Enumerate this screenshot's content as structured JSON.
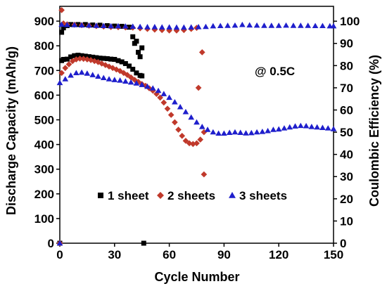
{
  "chart_data": {
    "type": "scatter",
    "xlabel": "Cycle Number",
    "ylabel_left": "Discharge Capacity (mAh/g)",
    "ylabel_right": "Coulombic Efficiency (%)",
    "annotation": "@ 0.5C",
    "xlim": [
      0,
      150
    ],
    "ylim_left": [
      0,
      960
    ],
    "ylim_right": [
      0,
      106.7
    ],
    "x_ticks": [
      "0",
      "30",
      "60",
      "90",
      "120",
      "150"
    ],
    "y_left_ticks": [
      "0",
      "100",
      "200",
      "300",
      "400",
      "500",
      "600",
      "700",
      "800",
      "900"
    ],
    "y_right_ticks": [
      "0",
      "10",
      "20",
      "30",
      "40",
      "50",
      "60",
      "70",
      "80",
      "90",
      "100"
    ],
    "legend_position": "bottom-center",
    "series": [
      {
        "name": "1 sheet",
        "color": "#000000",
        "marker": "square",
        "capacity": [
          [
            0,
            0
          ],
          [
            1,
            740
          ],
          [
            2,
            745
          ],
          [
            4,
            746
          ],
          [
            6,
            755
          ],
          [
            8,
            760
          ],
          [
            10,
            762
          ],
          [
            12,
            760
          ],
          [
            14,
            758
          ],
          [
            16,
            756
          ],
          [
            18,
            754
          ],
          [
            20,
            752
          ],
          [
            22,
            750
          ],
          [
            24,
            749
          ],
          [
            26,
            748
          ],
          [
            28,
            746
          ],
          [
            30,
            745
          ],
          [
            32,
            740
          ],
          [
            34,
            735
          ],
          [
            36,
            728
          ],
          [
            38,
            718
          ],
          [
            40,
            705
          ],
          [
            42,
            690
          ],
          [
            44,
            680
          ],
          [
            45,
            678
          ]
        ],
        "efficiency": [
          [
            1,
            95
          ],
          [
            2,
            97
          ],
          [
            4,
            98
          ],
          [
            6,
            98.5
          ],
          [
            10,
            98.5
          ],
          [
            14,
            98.5
          ],
          [
            18,
            98.3
          ],
          [
            22,
            98.2
          ],
          [
            26,
            98
          ],
          [
            30,
            97.8
          ],
          [
            34,
            97.7
          ],
          [
            38,
            97.3
          ],
          [
            40,
            93
          ],
          [
            41,
            90
          ],
          [
            42,
            91
          ],
          [
            43,
            86
          ],
          [
            44,
            84
          ],
          [
            45,
            88
          ],
          [
            46,
            0
          ]
        ]
      },
      {
        "name": "2 sheets",
        "color": "#c0392b",
        "marker": "diamond",
        "capacity": [
          [
            0,
            0
          ],
          [
            1,
            690
          ],
          [
            3,
            710
          ],
          [
            5,
            725
          ],
          [
            7,
            738
          ],
          [
            9,
            745
          ],
          [
            11,
            748
          ],
          [
            13,
            747
          ],
          [
            15,
            745
          ],
          [
            17,
            742
          ],
          [
            19,
            738
          ],
          [
            21,
            734
          ],
          [
            23,
            728
          ],
          [
            25,
            722
          ],
          [
            27,
            716
          ],
          [
            29,
            710
          ],
          [
            31,
            704
          ],
          [
            33,
            698
          ],
          [
            35,
            690
          ],
          [
            37,
            682
          ],
          [
            39,
            672
          ],
          [
            41,
            662
          ],
          [
            43,
            654
          ],
          [
            45,
            645
          ],
          [
            47,
            638
          ],
          [
            49,
            628
          ],
          [
            51,
            618
          ],
          [
            53,
            605
          ],
          [
            55,
            590
          ],
          [
            57,
            570
          ],
          [
            59,
            545
          ],
          [
            61,
            520
          ],
          [
            63,
            490
          ],
          [
            65,
            460
          ],
          [
            67,
            435
          ],
          [
            69,
            415
          ],
          [
            71,
            405
          ],
          [
            73,
            402
          ],
          [
            75,
            405
          ],
          [
            77,
            420
          ],
          [
            79,
            450
          ]
        ],
        "efficiency": [
          [
            1,
            105
          ],
          [
            2,
            99
          ],
          [
            4,
            98.6
          ],
          [
            8,
            98.4
          ],
          [
            12,
            98.2
          ],
          [
            16,
            98
          ],
          [
            20,
            97.8
          ],
          [
            24,
            97.6
          ],
          [
            28,
            97.4
          ],
          [
            32,
            97.3
          ],
          [
            36,
            97.2
          ],
          [
            40,
            97.1
          ],
          [
            44,
            96.8
          ],
          [
            48,
            96.5
          ],
          [
            52,
            96.2
          ],
          [
            56,
            96
          ],
          [
            60,
            95.8
          ],
          [
            64,
            95.8
          ],
          [
            68,
            96
          ],
          [
            72,
            96.5
          ],
          [
            75,
            97
          ],
          [
            76,
            70
          ],
          [
            78,
            86
          ],
          [
            79,
            31
          ]
        ]
      },
      {
        "name": "3 sheets",
        "color": "#1f1fcc",
        "marker": "triangle",
        "capacity": [
          [
            0,
            650
          ],
          [
            3,
            665
          ],
          [
            6,
            680
          ],
          [
            9,
            690
          ],
          [
            12,
            692
          ],
          [
            15,
            688
          ],
          [
            18,
            682
          ],
          [
            21,
            676
          ],
          [
            24,
            670
          ],
          [
            27,
            665
          ],
          [
            30,
            662
          ],
          [
            33,
            660
          ],
          [
            36,
            656
          ],
          [
            39,
            652
          ],
          [
            42,
            648
          ],
          [
            45,
            642
          ],
          [
            48,
            635
          ],
          [
            51,
            628
          ],
          [
            54,
            618
          ],
          [
            57,
            605
          ],
          [
            60,
            590
          ],
          [
            63,
            572
          ],
          [
            66,
            552
          ],
          [
            69,
            532
          ],
          [
            72,
            510
          ],
          [
            75,
            490
          ],
          [
            78,
            472
          ],
          [
            81,
            460
          ],
          [
            84,
            450
          ],
          [
            87,
            445
          ],
          [
            90,
            445
          ],
          [
            93,
            448
          ],
          [
            96,
            450
          ],
          [
            99,
            448
          ],
          [
            102,
            446
          ],
          [
            105,
            447
          ],
          [
            108,
            450
          ],
          [
            111,
            452
          ],
          [
            114,
            455
          ],
          [
            117,
            460
          ],
          [
            120,
            462
          ],
          [
            123,
            466
          ],
          [
            126,
            470
          ],
          [
            129,
            474
          ],
          [
            132,
            476
          ],
          [
            135,
            475
          ],
          [
            138,
            472
          ],
          [
            141,
            470
          ],
          [
            144,
            468
          ],
          [
            147,
            466
          ],
          [
            150,
            463
          ]
        ],
        "efficiency": [
          [
            0,
            0
          ],
          [
            1,
            98.5
          ],
          [
            4,
            98.4
          ],
          [
            8,
            98.3
          ],
          [
            12,
            98.2
          ],
          [
            16,
            98.1
          ],
          [
            20,
            98
          ],
          [
            24,
            97.9
          ],
          [
            28,
            97.8
          ],
          [
            32,
            97.8
          ],
          [
            36,
            97.7
          ],
          [
            40,
            97.6
          ],
          [
            44,
            97.5
          ],
          [
            48,
            97.4
          ],
          [
            52,
            97.4
          ],
          [
            56,
            97.3
          ],
          [
            60,
            97.3
          ],
          [
            64,
            97.2
          ],
          [
            68,
            97.2
          ],
          [
            72,
            97.3
          ],
          [
            76,
            97.4
          ],
          [
            80,
            97.5
          ],
          [
            84,
            97.8
          ],
          [
            88,
            97.9
          ],
          [
            92,
            98
          ],
          [
            96,
            98.1
          ],
          [
            100,
            98.4
          ],
          [
            104,
            98.2
          ],
          [
            108,
            98.1
          ],
          [
            112,
            98
          ],
          [
            116,
            98
          ],
          [
            120,
            98
          ],
          [
            124,
            98.1
          ],
          [
            128,
            98
          ],
          [
            132,
            98
          ],
          [
            136,
            98
          ],
          [
            140,
            97.9
          ],
          [
            144,
            97.9
          ],
          [
            148,
            97.8
          ],
          [
            150,
            97.8
          ]
        ]
      }
    ]
  }
}
